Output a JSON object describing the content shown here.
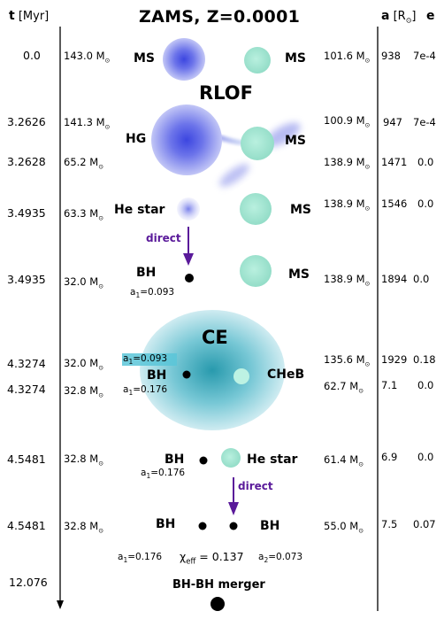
{
  "title": "ZAMS, Z=0.0001",
  "headers": {
    "time_bold": "t",
    "time_unit": "[Myr]",
    "a_bold": "a",
    "a_unit": "[R",
    "a_sun": "⊙",
    "a_close": "]",
    "e_bold": "e"
  },
  "solar_symbol": "⊙",
  "rows": [
    {
      "t": "0.0",
      "m1": "143.0 M",
      "m2": "101.6 M",
      "a": "938",
      "e": "7e-4"
    },
    {
      "t": "3.2626",
      "m1": "141.3 M",
      "m2": "100.9 M",
      "a": "947",
      "e": "7e-4"
    },
    {
      "t": "3.2628",
      "m1": "65.2 M",
      "m2": "138.9 M",
      "a": "1471",
      "e": "0.0"
    },
    {
      "t": "3.4935",
      "m1": "63.3 M",
      "m2": "138.9 M",
      "a": "1546",
      "e": "0.0"
    },
    {
      "t": "3.4935",
      "m1": "32.0 M",
      "m2": "138.9 M",
      "a": "1894",
      "e": "0.0"
    },
    {
      "t": "4.3274",
      "m1": "32.0 M",
      "m2": "135.6 M",
      "a": "1929",
      "e": "0.18"
    },
    {
      "t": "4.3274",
      "m1": "32.8 M",
      "m2": "62.7 M",
      "a": "7.1",
      "e": "0.0"
    },
    {
      "t": "4.5481",
      "m1": "32.8 M",
      "m2": "61.4 M",
      "a": "6.9",
      "e": "0.0"
    },
    {
      "t": "4.5481",
      "m1": "32.8 M",
      "m2": "55.0 M",
      "a": "7.5",
      "e": "0.07"
    },
    {
      "t": "12.076"
    }
  ],
  "phases": {
    "rlof": "RLOF",
    "ce": "CE",
    "direct1": "direct",
    "direct2": "direct",
    "merger": "BH-BH merger"
  },
  "star_labels": {
    "ms_left": "MS",
    "ms_right": "MS",
    "hg": "HG",
    "ms_rlof": "MS",
    "he_star_left": "He star",
    "ms_row4": "MS",
    "bh_row5": "BH",
    "ms_row5": "MS",
    "bh_ce": "BH",
    "cheb": "CHeB",
    "bh_row8": "BH",
    "he_star_right": "He star",
    "bh_row9_left": "BH",
    "bh_row9_right": "BH"
  },
  "spins": {
    "a1_row5": "a",
    "a1_row5_sub": "1",
    "a1_row5_val": "=0.093",
    "a1_ce_top": "a",
    "a1_ce_top_sub": "1",
    "a1_ce_top_val": "=0.093",
    "a1_ce_bot": "a",
    "a1_ce_bot_sub": "1",
    "a1_ce_bot_val": "=0.176",
    "a1_row8": "a",
    "a1_row8_sub": "1",
    "a1_row8_val": "=0.176",
    "a1_final": "a",
    "a1_final_sub": "1",
    "a1_final_val": "=0.176",
    "a2_final": "a",
    "a2_final_sub": "2",
    "a2_final_val": "=0.073"
  },
  "chi_eff": {
    "symbol": "χ",
    "sub": "eff",
    "value": " = 0.137"
  },
  "colors": {
    "primary_star": "#5a64e6",
    "companion_star": "#a8e8d6",
    "ce_envelope": "#2aa3b8",
    "direct_arrow": "#5a1a9a",
    "highlight": "#5bc5d8"
  }
}
